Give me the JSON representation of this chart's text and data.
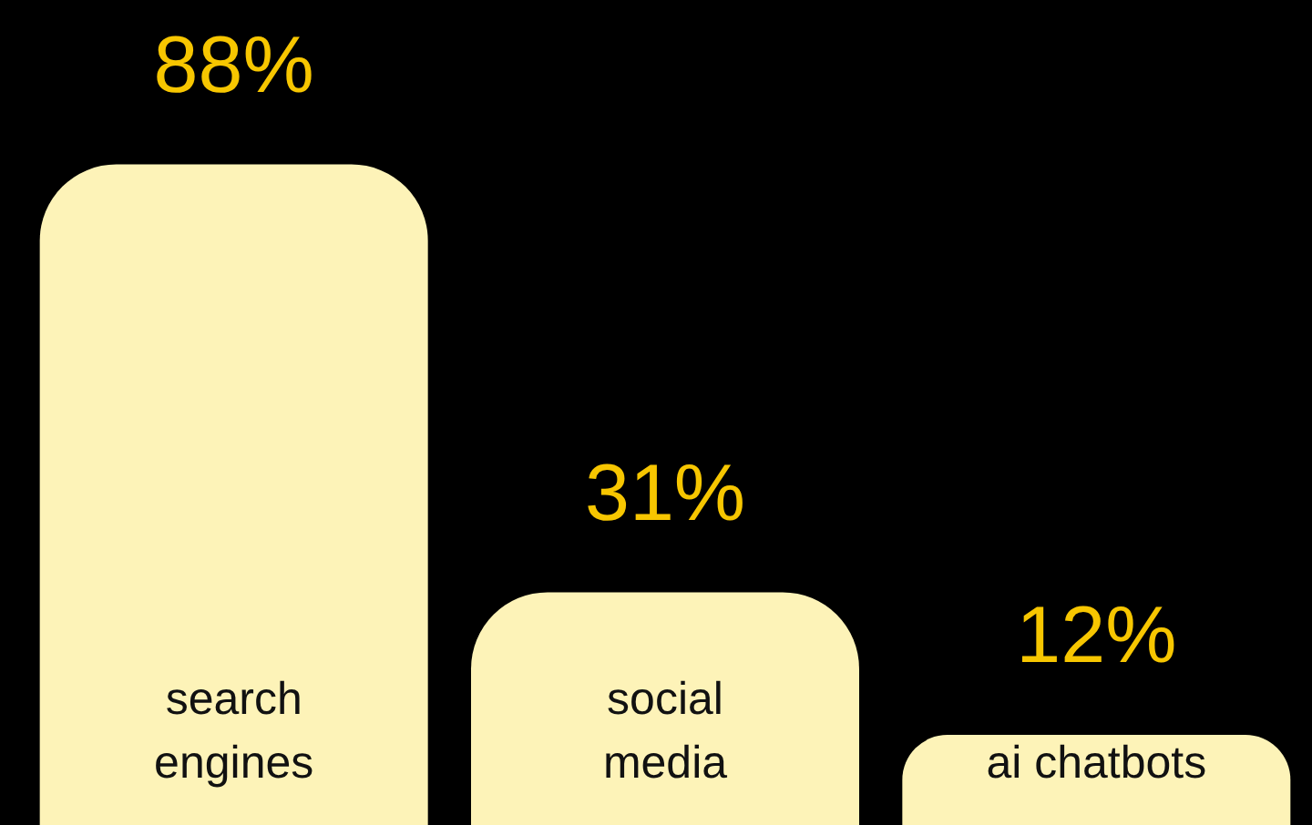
{
  "chart_data": {
    "type": "bar",
    "categories": [
      "search engines",
      "social media",
      "ai chatbots"
    ],
    "values": [
      88,
      31,
      12
    ],
    "color": "#fdf3b8",
    "value_labels": [
      "88%",
      "31%",
      "12%"
    ]
  }
}
